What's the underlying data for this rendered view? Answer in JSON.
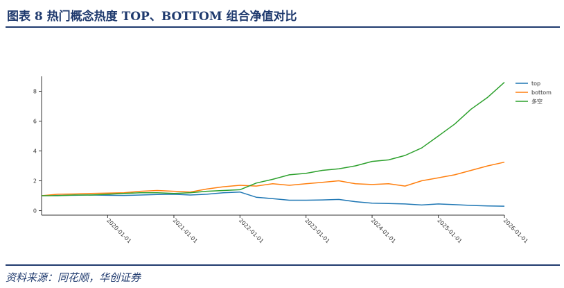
{
  "header": {
    "title": "图表 8   热门概念热度 TOP、BOTTOM 组合净值对比"
  },
  "footer": {
    "source": "资料来源：同花顺，华创证券"
  },
  "chart_data": {
    "type": "line",
    "title": "",
    "xlabel": "",
    "ylabel": "",
    "x_ticks": [
      "2020-01-01",
      "2021-01-01",
      "2022-01-01",
      "2023-01-01",
      "2024-01-01",
      "2025-01-01",
      "2026-01-01"
    ],
    "x_range": [
      "2019-01-01",
      "2026-01-01"
    ],
    "y_ticks": [
      0,
      2,
      4,
      6,
      8
    ],
    "ylim": [
      -0.3,
      9
    ],
    "grid": false,
    "legend_position": "top-right",
    "x": [
      "2019-01-01",
      "2019-04-01",
      "2019-07-01",
      "2019-10-01",
      "2020-01-01",
      "2020-04-01",
      "2020-07-01",
      "2020-10-01",
      "2021-01-01",
      "2021-04-01",
      "2021-07-01",
      "2021-10-01",
      "2022-01-01",
      "2022-04-01",
      "2022-07-01",
      "2022-10-01",
      "2023-01-01",
      "2023-04-01",
      "2023-07-01",
      "2023-10-01",
      "2024-01-01",
      "2024-04-01",
      "2024-07-01",
      "2024-10-01",
      "2025-01-01",
      "2025-04-01",
      "2025-07-01",
      "2025-10-01",
      "2026-01-01"
    ],
    "series": [
      {
        "name": "top",
        "color": "#1f77b4",
        "values": [
          1.0,
          1.02,
          1.03,
          1.05,
          1.03,
          1.02,
          1.05,
          1.08,
          1.1,
          1.05,
          1.1,
          1.2,
          1.25,
          0.9,
          0.8,
          0.7,
          0.7,
          0.72,
          0.75,
          0.6,
          0.5,
          0.48,
          0.45,
          0.38,
          0.45,
          0.4,
          0.35,
          0.32,
          0.3
        ]
      },
      {
        "name": "bottom",
        "color": "#ff7f0e",
        "values": [
          1.0,
          1.1,
          1.12,
          1.15,
          1.18,
          1.2,
          1.3,
          1.35,
          1.3,
          1.25,
          1.45,
          1.6,
          1.7,
          1.65,
          1.8,
          1.7,
          1.8,
          1.9,
          2.0,
          1.8,
          1.75,
          1.8,
          1.65,
          2.0,
          2.2,
          2.4,
          2.7,
          3.0,
          3.25
        ]
      },
      {
        "name": "多空",
        "color": "#2ca02c",
        "values": [
          1.0,
          1.0,
          1.05,
          1.05,
          1.1,
          1.15,
          1.2,
          1.2,
          1.15,
          1.2,
          1.3,
          1.35,
          1.4,
          1.85,
          2.1,
          2.4,
          2.5,
          2.7,
          2.8,
          3.0,
          3.3,
          3.4,
          3.7,
          4.2,
          5.0,
          5.8,
          6.8,
          7.6,
          8.6
        ]
      }
    ]
  }
}
